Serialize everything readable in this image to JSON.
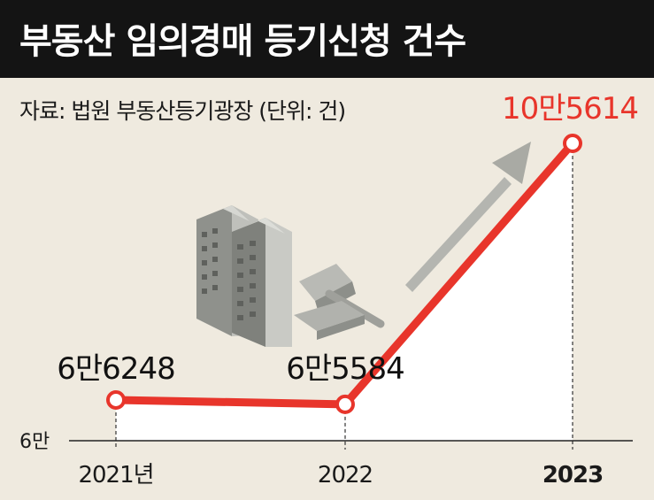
{
  "header": {
    "title": "부동산 임의경매 등기신청 건수",
    "source": "자료: 법원 부동산등기광장 (단위: 건)"
  },
  "colors": {
    "header_bg": "#141414",
    "background": "#efeadf",
    "line": "#e8352b",
    "highlight_label": "#e8352b",
    "area_fill": "#ffffff",
    "arrow": "#a9aaa4"
  },
  "chart_data": {
    "type": "line",
    "categories": [
      "2021년",
      "2022",
      "2023"
    ],
    "values": [
      66248,
      65584,
      105614
    ],
    "data_labels": [
      "6만6248",
      "6만5584",
      "10만5614"
    ],
    "highlight_index": 2,
    "ylim": [
      60000,
      105614
    ],
    "y_tick_labels": [
      {
        "value": 60000,
        "label": "6만"
      }
    ],
    "grid": false,
    "legend": "none"
  },
  "illustration": {
    "buildings": "apartment-buildings-icon",
    "gavel": "gavel-icon",
    "arrow": "upward-trend-arrow-icon"
  }
}
